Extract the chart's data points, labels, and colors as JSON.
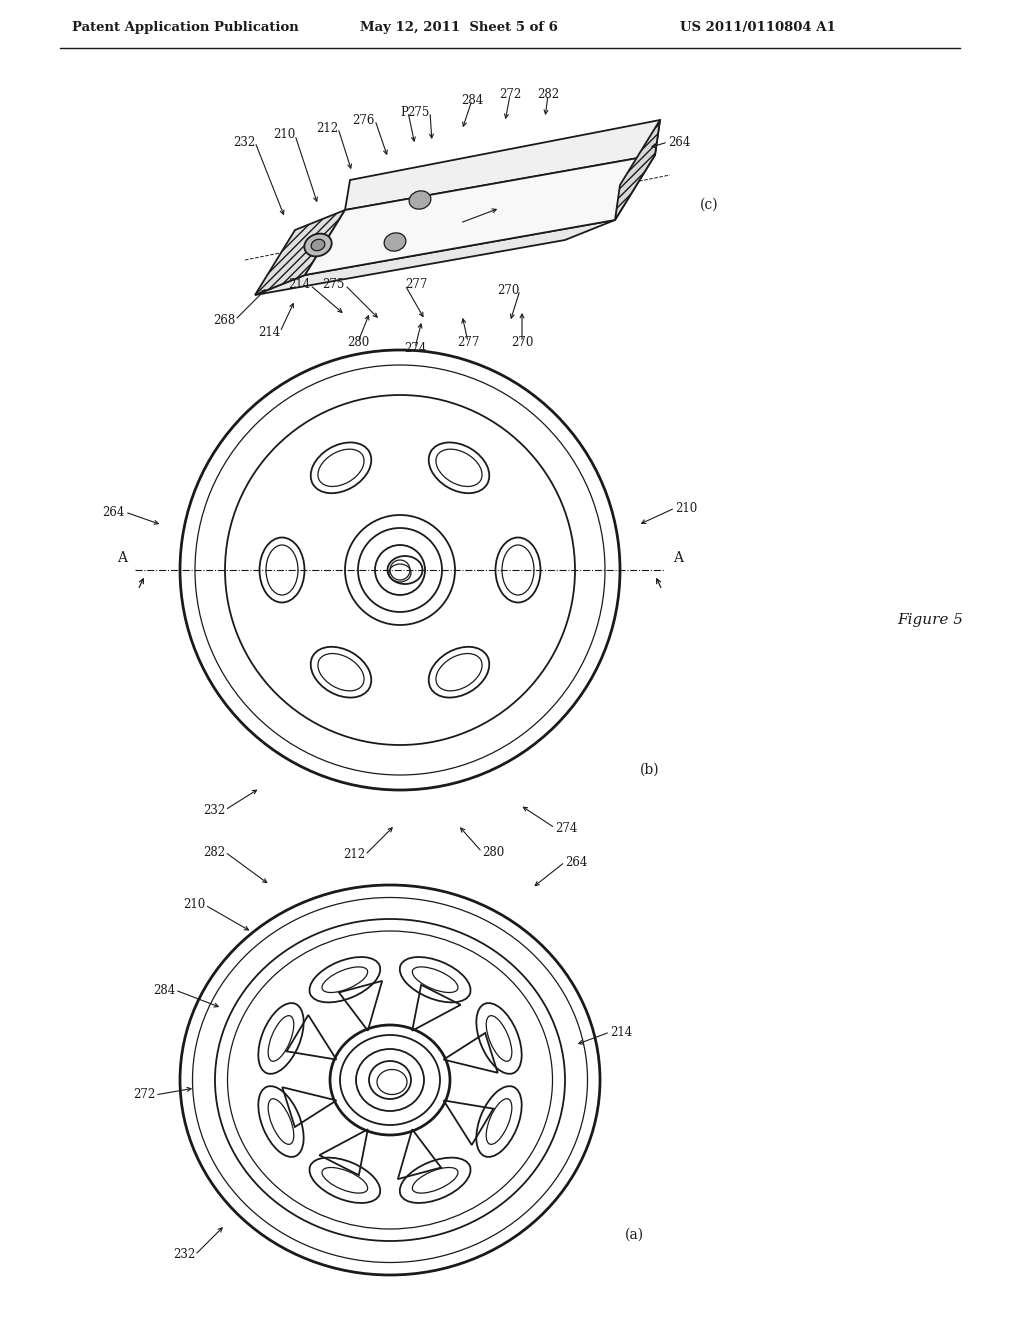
{
  "bg_color": "#ffffff",
  "header_left": "Patent Application Publication",
  "header_mid": "May 12, 2011  Sheet 5 of 6",
  "header_right": "US 2011/0110804 A1",
  "figure_label": "Figure 5",
  "diagram_c_label": "(c)",
  "diagram_b_label": "(b)",
  "diagram_a_label": "(a)",
  "line_color": "#1a1a1a"
}
